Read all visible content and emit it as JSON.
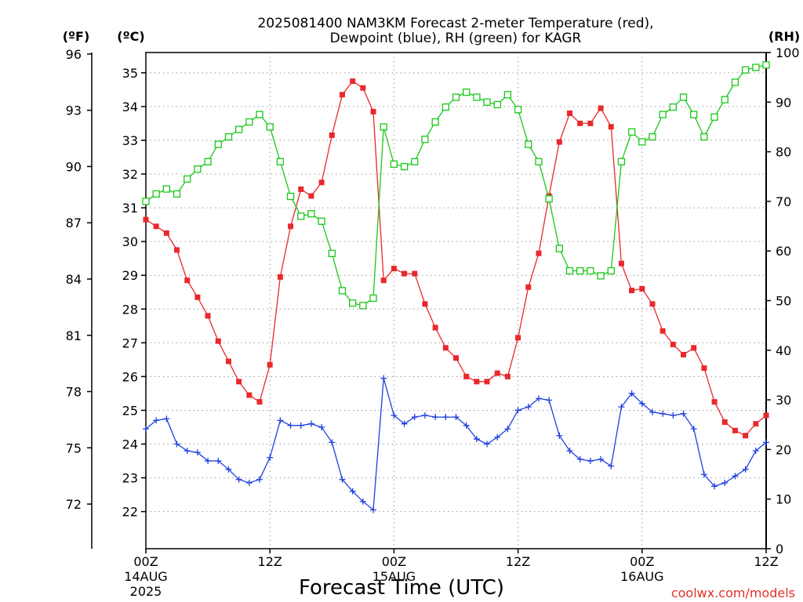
{
  "chart_data": {
    "type": "line",
    "title_line1": "2025081400 NAM3KM Forecast 2-meter Temperature (red),",
    "title_line2": "Dewpoint (blue), RH (green) for KAGR",
    "xlabel": "Forecast Time (UTC)",
    "credit": "coolwx.com/models",
    "unit_left_outer": "(ºF)",
    "unit_left_inner": "(ºC)",
    "unit_right": "(RH)",
    "x_ticks": [
      {
        "hour": 0,
        "label": "00Z",
        "sub1": "14AUG",
        "sub2": "2025"
      },
      {
        "hour": 12,
        "label": "12Z",
        "sub1": "",
        "sub2": ""
      },
      {
        "hour": 24,
        "label": "00Z",
        "sub1": "15AUG",
        "sub2": ""
      },
      {
        "hour": 36,
        "label": "12Z",
        "sub1": "",
        "sub2": ""
      },
      {
        "hour": 48,
        "label": "00Z",
        "sub1": "16AUG",
        "sub2": ""
      },
      {
        "hour": 60,
        "label": "12Z",
        "sub1": "",
        "sub2": ""
      }
    ],
    "xlim": [
      0,
      60
    ],
    "celsius_ticks": [
      "22",
      "23",
      "24",
      "25",
      "26",
      "27",
      "28",
      "29",
      "30",
      "31",
      "32",
      "33",
      "34",
      "35"
    ],
    "fahrenheit_ticks": [
      "72",
      "75",
      "78",
      "81",
      "84",
      "87",
      "90",
      "93",
      "96"
    ],
    "rh_ticks": [
      "0",
      "10",
      "20",
      "30",
      "40",
      "50",
      "60",
      "70",
      "80",
      "90",
      "100"
    ],
    "celsius_range": [
      20.9,
      35.6
    ],
    "rh_range": [
      0,
      100
    ],
    "grid": true,
    "colors": {
      "temperature": "#e8282c",
      "dewpoint": "#1f3fe0",
      "rh": "#18c818"
    },
    "series": [
      {
        "key": "temperature",
        "unit": "C",
        "marker": "filled-square",
        "values": [
          30.65,
          30.45,
          30.25,
          29.75,
          28.85,
          28.35,
          27.8,
          27.05,
          26.45,
          25.85,
          25.45,
          25.25,
          26.35,
          28.95,
          30.45,
          31.55,
          31.35,
          31.75,
          33.15,
          34.35,
          34.75,
          34.55,
          33.85,
          28.85,
          29.2,
          29.05,
          29.05,
          28.15,
          27.45,
          26.85,
          26.55,
          26.0,
          25.85,
          25.85,
          26.1,
          26.0,
          27.15,
          28.65,
          29.65,
          31.35,
          32.95,
          33.8,
          33.5,
          33.5,
          33.95,
          33.4,
          29.35,
          28.55,
          28.6,
          28.15,
          27.35,
          26.95,
          26.65,
          26.85,
          26.25,
          25.25,
          24.65,
          24.4,
          24.25,
          24.6,
          24.85
        ]
      },
      {
        "key": "dewpoint",
        "unit": "C",
        "marker": "plus",
        "values": [
          24.45,
          24.7,
          24.75,
          24.0,
          23.8,
          23.75,
          23.5,
          23.5,
          23.25,
          22.95,
          22.85,
          22.95,
          23.6,
          24.7,
          24.55,
          24.55,
          24.6,
          24.5,
          24.05,
          22.95,
          22.6,
          22.3,
          22.05,
          25.95,
          24.85,
          24.6,
          24.8,
          24.85,
          24.8,
          24.8,
          24.8,
          24.55,
          24.15,
          24.0,
          24.2,
          24.45,
          25.0,
          25.1,
          25.35,
          25.3,
          24.25,
          23.8,
          23.55,
          23.5,
          23.55,
          23.35,
          25.1,
          25.5,
          25.2,
          24.95,
          24.9,
          24.85,
          24.9,
          24.45,
          23.1,
          22.75,
          22.85,
          23.05,
          23.25,
          23.8,
          24.05
        ]
      },
      {
        "key": "rh",
        "unit": "percent",
        "marker": "open-square",
        "values": [
          70,
          71.5,
          72.5,
          71.5,
          74.5,
          76.5,
          78,
          81.5,
          83,
          84.5,
          86,
          87.5,
          85,
          78,
          71,
          67,
          67.5,
          66,
          59.5,
          52,
          49.5,
          49,
          50.5,
          85,
          77.5,
          77,
          78,
          82.5,
          86,
          89,
          91,
          92,
          91,
          90,
          89.5,
          91.5,
          88.5,
          81.5,
          78,
          70.5,
          60.5,
          56,
          56,
          56,
          55,
          56,
          78,
          84,
          82,
          83,
          87.5,
          89,
          91,
          87.5,
          83,
          87,
          90.5,
          94,
          96.5,
          97,
          97.5
        ]
      }
    ]
  }
}
